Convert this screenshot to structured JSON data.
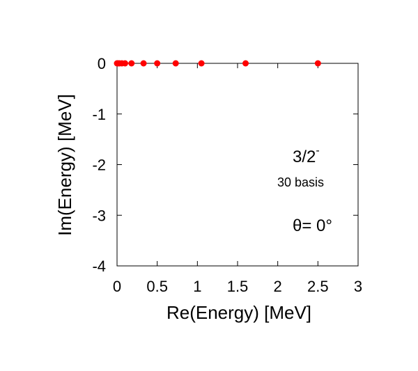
{
  "chart_data": {
    "type": "scatter",
    "title": "",
    "xlabel": "Re(Energy) [MeV]",
    "ylabel": "Im(Energy) [MeV]",
    "xlim": [
      0,
      3
    ],
    "ylim": [
      -4,
      0
    ],
    "xticks": [
      0,
      0.5,
      1,
      1.5,
      2,
      2.5,
      3
    ],
    "xtick_labels": [
      "0",
      "0.5",
      "1",
      "1.5",
      "2",
      "2.5",
      "3"
    ],
    "yticks": [
      0,
      -1,
      -2,
      -3,
      -4
    ],
    "ytick_labels": [
      "0",
      "-1",
      "-2",
      "-3",
      "-4"
    ],
    "grid": false,
    "series": [
      {
        "color": "#ff0000",
        "x": [
          0.0,
          0.01,
          0.03,
          0.06,
          0.1,
          0.18,
          0.33,
          0.5,
          0.73,
          1.05,
          1.6,
          2.5
        ],
        "y": [
          0,
          0,
          0,
          0,
          0,
          0,
          0,
          0,
          0,
          0,
          0,
          0
        ]
      }
    ],
    "annotations": {
      "state_main": "3/2",
      "state_sup": "-",
      "basis": "30 basis",
      "theta": "θ=  0°"
    }
  }
}
